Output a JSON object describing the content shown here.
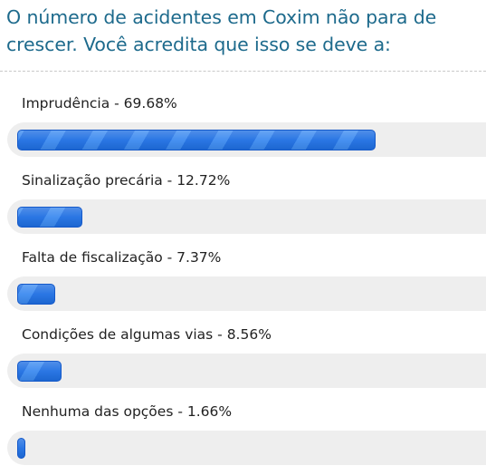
{
  "poll": {
    "question": "O número de acidentes em Coxim não para de crescer. Você acredita que isso se deve a:",
    "bar_color": "#2a7ae8",
    "track_color": "#eeeeee",
    "options": [
      {
        "label": "Imprudência - 69.68%",
        "percent": 69.68
      },
      {
        "label": "Sinalização precária - 12.72%",
        "percent": 12.72
      },
      {
        "label": "Falta de fiscalização - 7.37%",
        "percent": 7.37
      },
      {
        "label": "Condições de algumas vias - 8.56%",
        "percent": 8.56
      },
      {
        "label": "Nenhuma das opções - 1.66%",
        "percent": 1.66
      }
    ]
  }
}
